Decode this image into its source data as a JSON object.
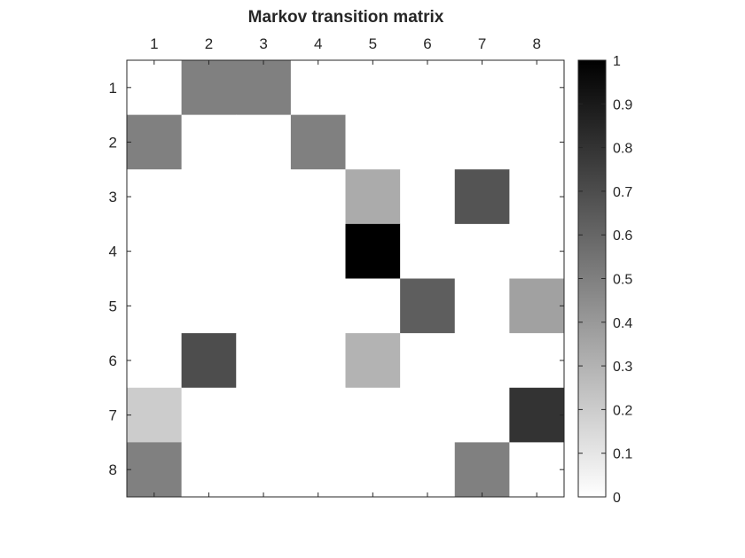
{
  "chart_data": {
    "type": "heatmap",
    "title": "Markov transition matrix",
    "x_ticks": [
      "1",
      "2",
      "3",
      "4",
      "5",
      "6",
      "7",
      "8"
    ],
    "y_ticks": [
      "1",
      "2",
      "3",
      "4",
      "5",
      "6",
      "7",
      "8"
    ],
    "colormap": "gray-reversed",
    "clim": [
      0,
      1
    ],
    "colorbar": {
      "location": "right",
      "ticks": [
        "0",
        "0.1",
        "0.2",
        "0.3",
        "0.4",
        "0.5",
        "0.6",
        "0.7",
        "0.8",
        "0.9",
        "1"
      ]
    },
    "values": [
      [
        0,
        0.5,
        0.5,
        0,
        0,
        0,
        0,
        0
      ],
      [
        0.5,
        0,
        0,
        0.5,
        0,
        0,
        0,
        0
      ],
      [
        0,
        0,
        0,
        0,
        0.33,
        0,
        0.67,
        0
      ],
      [
        0,
        0,
        0,
        0,
        1.0,
        0,
        0,
        0
      ],
      [
        0,
        0,
        0,
        0,
        0,
        0.63,
        0,
        0.37
      ],
      [
        0,
        0.7,
        0,
        0,
        0.3,
        0,
        0,
        0
      ],
      [
        0.2,
        0,
        0,
        0,
        0,
        0,
        0,
        0.8
      ],
      [
        0.5,
        0,
        0,
        0,
        0,
        0,
        0.5,
        0
      ]
    ]
  }
}
